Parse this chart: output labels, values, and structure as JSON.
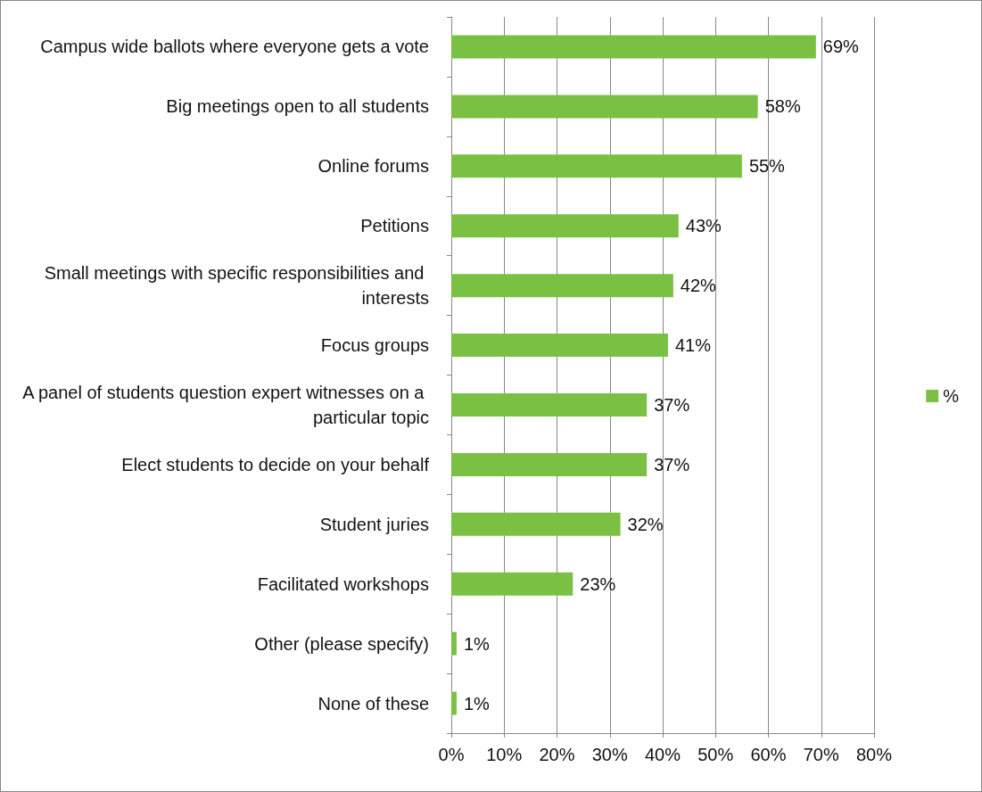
{
  "chart_data": {
    "type": "bar",
    "orientation": "horizontal",
    "categories": [
      "Campus wide ballots where everyone gets a vote",
      "Big meetings open to all students",
      "Online forums",
      "Petitions",
      "Small meetings with specific responsibilities and interests",
      "Focus groups",
      "A panel of students question expert witnesses on a particular topic",
      "Elect students to decide on your behalf",
      "Student juries",
      "Facilitated workshops",
      "Other (please specify)",
      "None of these"
    ],
    "series": [
      {
        "name": "%",
        "color": "#7ac143",
        "values": [
          69,
          58,
          55,
          43,
          42,
          41,
          37,
          37,
          32,
          23,
          1,
          1
        ],
        "value_labels": [
          "69%",
          "58%",
          "55%",
          "43%",
          "42%",
          "41%",
          "37%",
          "37%",
          "32%",
          "23%",
          "1%",
          "1%"
        ]
      }
    ],
    "xlim": [
      0,
      80
    ],
    "xticks": [
      {
        "value": 0,
        "label": "0%"
      },
      {
        "value": 10,
        "label": "10%"
      },
      {
        "value": 20,
        "label": "20%"
      },
      {
        "value": 30,
        "label": "30%"
      },
      {
        "value": 40,
        "label": "40%"
      },
      {
        "value": 50,
        "label": "50%"
      },
      {
        "value": 60,
        "label": "60%"
      },
      {
        "value": 70,
        "label": "70%"
      },
      {
        "value": 80,
        "label": "80%"
      }
    ],
    "grid": "x",
    "legend": "right"
  }
}
